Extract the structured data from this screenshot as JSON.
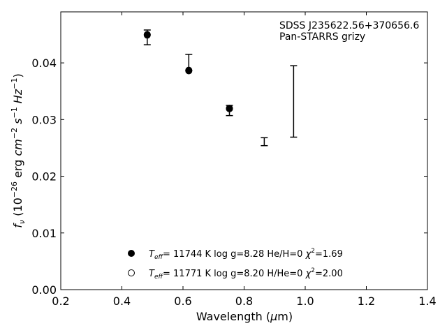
{
  "chart_data": {
    "type": "scatter",
    "annotation": [
      "SDSS J235622.56+370656.6",
      "Pan-STARRS grizy"
    ],
    "xlabel": {
      "main": "Wavelength (",
      "mu": "μ",
      "rest": "m)"
    },
    "ylabel": {
      "f": "f",
      "f_sub": "ν",
      "paren_open": " (10",
      "exp_a": "−26",
      "erg": " erg ",
      "cm": "cm",
      "exp_b": "−2",
      "s": " s",
      "exp_c": "−1",
      "hz": " Hz",
      "exp_d": "−1",
      "paren_close": ")"
    },
    "xlim": [
      0.2,
      1.4
    ],
    "ylim": [
      0.0,
      0.049
    ],
    "xticks": [
      0.2,
      0.4,
      0.6,
      0.8,
      1.0,
      1.2,
      1.4
    ],
    "xtick_labels": [
      "0.2",
      "0.4",
      "0.6",
      "0.8",
      "1.0",
      "1.2",
      "1.4"
    ],
    "yticks": [
      0.0,
      0.01,
      0.02,
      0.03,
      0.04
    ],
    "ytick_labels": [
      "0.00",
      "0.01",
      "0.02",
      "0.03",
      "0.04"
    ],
    "grid": false,
    "observed": [
      {
        "x": 0.483,
        "low": 0.0432,
        "high": 0.0458
      },
      {
        "x": 0.619,
        "low": 0.0387,
        "high": 0.0415
      },
      {
        "x": 0.752,
        "low": 0.0307,
        "high": 0.0325
      },
      {
        "x": 0.866,
        "low": 0.0254,
        "high": 0.0268
      },
      {
        "x": 0.962,
        "low": 0.0269,
        "high": 0.0395
      }
    ],
    "series": [
      {
        "marker": "filled",
        "label": {
          "t": "T",
          "t_sub": "eff",
          "text": "= 11744 K  log g=8.28  He/H=0  ",
          "chi": "χ",
          "chi_exp": "2",
          "chi_val": "=1.69"
        },
        "x": [
          0.483,
          0.619,
          0.752
        ],
        "y": [
          0.045,
          0.0387,
          0.032
        ]
      },
      {
        "marker": "open",
        "label": {
          "t": "T",
          "t_sub": "eff",
          "text": "= 11771 K  log g=8.20  H/He=0  ",
          "chi": "χ",
          "chi_exp": "2",
          "chi_val": "=2.00"
        },
        "x": [
          0.483,
          0.619,
          0.752
        ],
        "y": [
          0.0449,
          0.0386,
          0.0319
        ]
      }
    ],
    "legend_position": "lower-center",
    "colors": {
      "marker": "#000000",
      "errorbar": "#000000"
    }
  }
}
